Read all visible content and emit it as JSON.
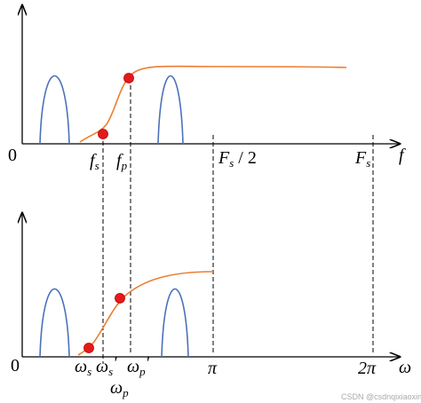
{
  "top": {
    "origin": "0",
    "fs": {
      "main": "f",
      "sub": "s"
    },
    "fp": {
      "main": "f",
      "sub": "p"
    },
    "half": {
      "main": "F",
      "sub": "s",
      "rest": " / 2"
    },
    "Fs": {
      "main": "F",
      "sub": "s"
    },
    "axis": "f"
  },
  "bottom": {
    "origin": "0",
    "ws": {
      "main": "ω",
      "sub": "s"
    },
    "ws2": {
      "main": "ω",
      "sub": "s",
      "prime": "'"
    },
    "wp": {
      "main": "ω",
      "sub": "p"
    },
    "wp2": {
      "main": "ω",
      "sub": "p",
      "prime": "'"
    },
    "pi": "π",
    "twopi": "2π",
    "axis": "ω"
  },
  "watermark": "CSDN @csdnqixiaoxin"
}
